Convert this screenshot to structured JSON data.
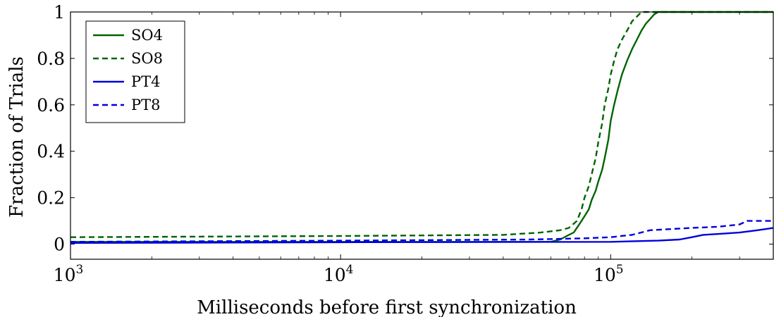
{
  "chart_data": {
    "type": "line",
    "title": "",
    "xlabel": "Milliseconds before first synchronization",
    "ylabel": "Fraction of Trials",
    "xscale": "log",
    "xlim": [
      1000,
      400000
    ],
    "ylim": [
      -0.065,
      1
    ],
    "yticks": [
      0,
      0.2,
      0.4,
      0.6,
      0.8,
      1
    ],
    "ytick_labels": [
      "0",
      "0.2",
      "0.4",
      "0.6",
      "0.8",
      "1"
    ],
    "xticks": [
      {
        "value": 1000,
        "base": "10",
        "exp": "3"
      },
      {
        "value": 10000,
        "base": "10",
        "exp": "4"
      },
      {
        "value": 100000,
        "base": "10",
        "exp": "5"
      }
    ],
    "grid": false,
    "legend_position": "top-left",
    "series": [
      {
        "name": "SO4",
        "color": "#006400",
        "dash": "solid",
        "x": [
          1000,
          10000,
          60000,
          65000,
          70000,
          73000,
          76000,
          78000,
          80000,
          83000,
          85000,
          88000,
          90000,
          93000,
          95000,
          98000,
          100000,
          103000,
          106000,
          110000,
          115000,
          120000,
          125000,
          130000,
          135000,
          140000,
          145000,
          150000,
          400000
        ],
        "y": [
          0.01,
          0.01,
          0.01,
          0.02,
          0.04,
          0.05,
          0.08,
          0.1,
          0.12,
          0.15,
          0.19,
          0.23,
          0.27,
          0.32,
          0.37,
          0.45,
          0.53,
          0.6,
          0.66,
          0.73,
          0.79,
          0.84,
          0.88,
          0.92,
          0.95,
          0.97,
          0.99,
          1.0,
          1.0
        ]
      },
      {
        "name": "SO8",
        "color": "#006400",
        "dash": "dashed",
        "x": [
          1000,
          10000,
          40000,
          55000,
          65000,
          70000,
          75000,
          78000,
          80000,
          83000,
          85000,
          88000,
          90000,
          93000,
          95000,
          98000,
          100000,
          103000,
          106000,
          110000,
          115000,
          120000,
          125000,
          130000,
          135000,
          400000
        ],
        "y": [
          0.03,
          0.035,
          0.04,
          0.05,
          0.06,
          0.07,
          0.1,
          0.15,
          0.2,
          0.25,
          0.3,
          0.37,
          0.44,
          0.52,
          0.6,
          0.67,
          0.73,
          0.79,
          0.84,
          0.88,
          0.92,
          0.96,
          0.98,
          1.0,
          1.0,
          1.0
        ]
      },
      {
        "name": "PT4",
        "color": "#0000dd",
        "dash": "solid",
        "x": [
          1000,
          10000,
          100000,
          150000,
          180000,
          200000,
          220000,
          260000,
          300000,
          350000,
          400000
        ],
        "y": [
          0.005,
          0.008,
          0.01,
          0.015,
          0.02,
          0.03,
          0.04,
          0.045,
          0.05,
          0.06,
          0.07
        ]
      },
      {
        "name": "PT8",
        "color": "#0000dd",
        "dash": "dashed",
        "x": [
          1000,
          10000,
          50000,
          80000,
          100000,
          120000,
          140000,
          200000,
          250000,
          300000,
          320000,
          400000
        ],
        "y": [
          0.01,
          0.015,
          0.02,
          0.025,
          0.03,
          0.04,
          0.06,
          0.07,
          0.075,
          0.085,
          0.1,
          0.1
        ]
      }
    ]
  }
}
